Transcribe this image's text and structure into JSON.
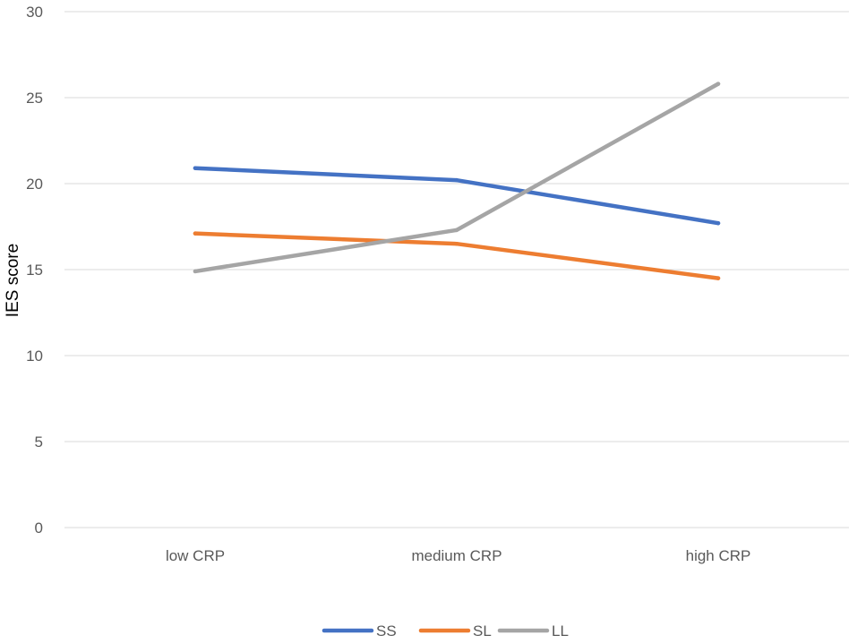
{
  "chart_data": {
    "type": "line",
    "title": "",
    "xlabel": "",
    "ylabel": "IES score",
    "categories": [
      "low CRP",
      "medium CRP",
      "high CRP"
    ],
    "ylim": [
      0,
      30
    ],
    "yticks": [
      0,
      5,
      10,
      15,
      20,
      25,
      30
    ],
    "grid": true,
    "legend_position": "bottom",
    "series": [
      {
        "name": "SS",
        "color": "#4472C4",
        "values": [
          20.9,
          20.2,
          17.7
        ]
      },
      {
        "name": "SL",
        "color": "#ED7D31",
        "values": [
          17.1,
          16.5,
          14.5
        ]
      },
      {
        "name": "LL",
        "color": "#A5A5A5",
        "values": [
          14.9,
          17.3,
          25.8
        ]
      }
    ]
  }
}
